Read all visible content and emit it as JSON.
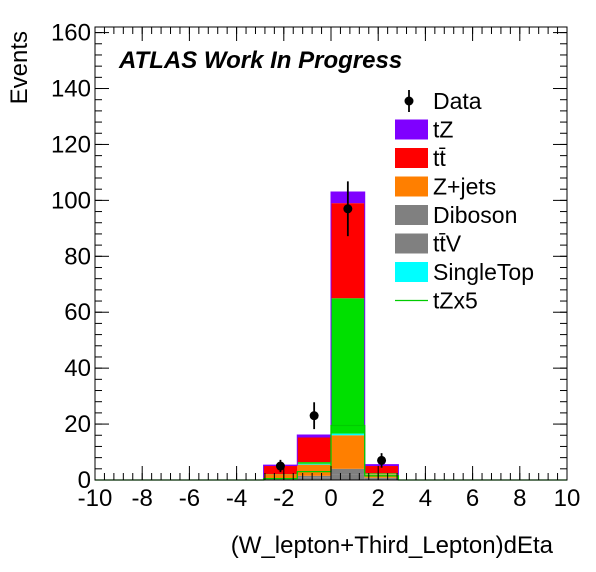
{
  "chart_data": {
    "type": "bar",
    "title": "ATLAS Work In Progress",
    "xlabel": "(W_lepton+Third_Lepton)dEta",
    "ylabel": "Events",
    "xlim": [
      -10,
      10
    ],
    "ylim": [
      0,
      162
    ],
    "x_ticks": [
      -10,
      -8,
      -6,
      -4,
      -2,
      0,
      2,
      4,
      6,
      8,
      10
    ],
    "y_ticks": [
      0,
      20,
      40,
      60,
      80,
      100,
      120,
      140,
      160
    ],
    "bin_edges": [
      -10,
      -8.571,
      -7.143,
      -5.714,
      -4.286,
      -2.857,
      -1.429,
      0,
      1.429,
      2.857,
      4.286,
      5.714,
      7.143,
      8.571,
      10
    ],
    "stacked": true,
    "series": [
      {
        "name": "tt̄V",
        "color": "#808080",
        "values": [
          0,
          0,
          0,
          0,
          0,
          0.3,
          0.8,
          2.0,
          0.5,
          0,
          0,
          0,
          0,
          0
        ]
      },
      {
        "name": "Diboson",
        "color": "#7f7f7f",
        "values": [
          0,
          0,
          0,
          0,
          0,
          0.3,
          0.7,
          2.0,
          0.3,
          0,
          0,
          0,
          0,
          0
        ]
      },
      {
        "name": "Z+jets",
        "color": "#ff7f00",
        "values": [
          0,
          0,
          0,
          0,
          0,
          1.4,
          4.0,
          12.0,
          1.2,
          0,
          0,
          0,
          0,
          0
        ]
      },
      {
        "name": "SingleTop",
        "color": "#00ffff",
        "values": [
          0,
          0,
          0,
          0,
          0,
          0,
          0.3,
          0.6,
          0.1,
          0,
          0,
          0,
          0,
          0
        ]
      },
      {
        "name": "tZ",
        "color": "#00e000",
        "values": [
          0,
          0,
          0,
          0,
          0,
          0.1,
          0.6,
          48.4,
          0.3,
          0,
          0,
          0,
          0,
          0
        ]
      },
      {
        "name": "tt̄",
        "color": "#ff0000",
        "values": [
          0,
          0,
          0,
          0,
          0,
          2.9,
          8.8,
          34.0,
          2.6,
          0,
          0,
          0,
          0,
          0
        ]
      },
      {
        "name": "tZ",
        "color": "#7f00ff",
        "values": [
          0,
          0,
          0,
          0,
          0,
          0.3,
          0.9,
          4.0,
          0.5,
          0,
          0,
          0,
          0,
          0
        ]
      }
    ],
    "tZx5_line": {
      "name": "tZx5",
      "color": "#00cc00",
      "values": [
        0,
        0,
        0,
        0,
        0,
        0.5,
        3.0,
        19.5,
        1.5,
        0,
        0,
        0,
        0,
        0
      ]
    },
    "data_points": {
      "name": "Data",
      "x": [
        -2.143,
        -0.714,
        0.714,
        2.143
      ],
      "y": [
        5,
        23,
        97,
        7
      ],
      "err": [
        2.2,
        4.8,
        9.8,
        2.6
      ]
    },
    "legend": {
      "placement": "top-right",
      "entries": [
        {
          "label": "Data",
          "kind": "marker",
          "color": "#000000"
        },
        {
          "label": "tZ",
          "kind": "box",
          "color": "#7f00ff"
        },
        {
          "label": "tt̄",
          "kind": "box",
          "color": "#ff0000"
        },
        {
          "label": "Z+jets",
          "kind": "box",
          "color": "#ff7f00"
        },
        {
          "label": "Diboson",
          "kind": "box",
          "color": "#808080"
        },
        {
          "label": "tt̄V",
          "kind": "box",
          "color": "#808080"
        },
        {
          "label": "SingleTop",
          "kind": "box",
          "color": "#00ffff"
        },
        {
          "label": "tZx5",
          "kind": "line",
          "color": "#00cc00"
        }
      ]
    }
  }
}
